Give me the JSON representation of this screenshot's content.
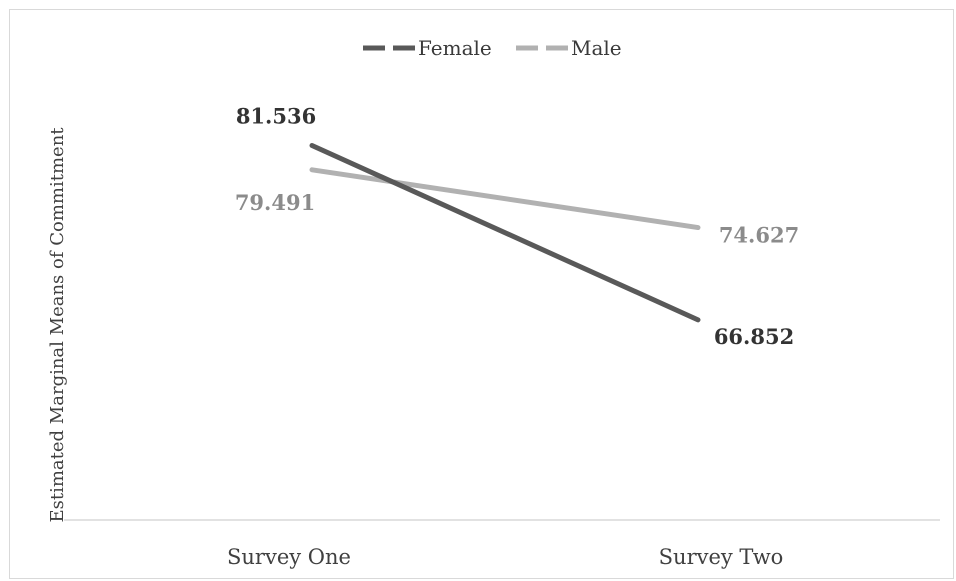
{
  "chart_data": {
    "type": "line",
    "categories": [
      "Survey One",
      "Survey Two"
    ],
    "series": [
      {
        "name": "Female",
        "values": [
          81.536,
          66.852
        ],
        "labels": [
          "81.536",
          "66.852"
        ],
        "color": "#595959",
        "dash": "solid"
      },
      {
        "name": "Male",
        "values": [
          79.491,
          74.627
        ],
        "labels": [
          "79.491",
          "74.627"
        ],
        "color": "#b1b1b1",
        "dash": "solid"
      }
    ],
    "xlabel": "",
    "ylabel": "Estimated Marginal Means of Commitment",
    "ylim": [
      50,
      90
    ],
    "grid": false,
    "legend": "top-center"
  }
}
